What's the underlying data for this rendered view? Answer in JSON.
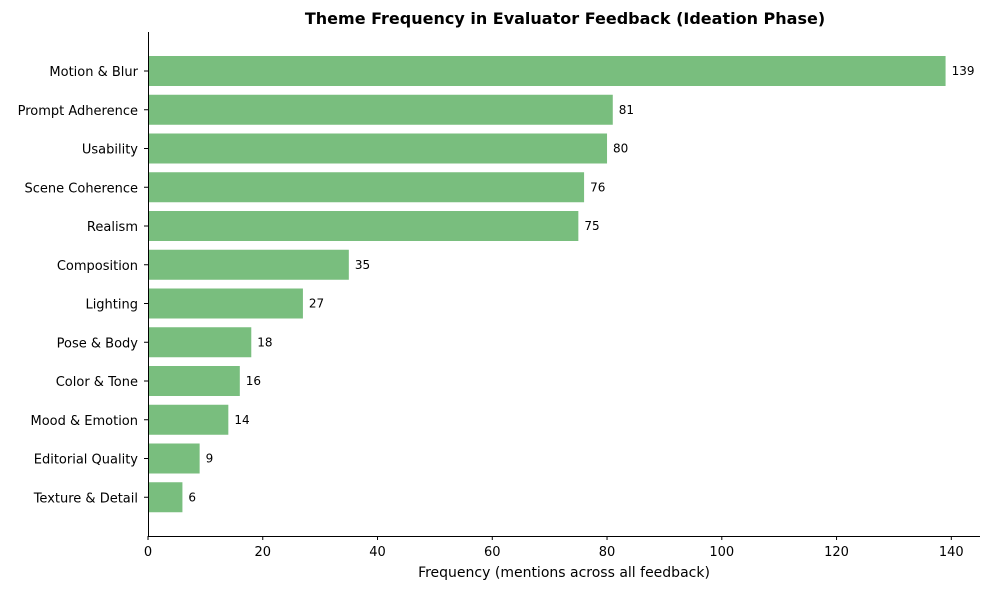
{
  "chart_data": {
    "type": "bar",
    "orientation": "horizontal",
    "title": "Theme Frequency in Evaluator Feedback (Ideation Phase)",
    "xlabel": "Frequency (mentions across all feedback)",
    "ylabel": "",
    "xlim": [
      0,
      145
    ],
    "xticks": [
      0,
      20,
      40,
      60,
      80,
      100,
      120,
      140
    ],
    "grid": false,
    "bar_color": "#79be7e",
    "categories": [
      "Motion & Blur",
      "Prompt Adherence",
      "Usability",
      "Scene Coherence",
      "Realism",
      "Composition",
      "Lighting",
      "Pose & Body",
      "Color & Tone",
      "Mood & Emotion",
      "Editorial Quality",
      "Texture & Detail"
    ],
    "values": [
      139,
      81,
      80,
      76,
      75,
      35,
      27,
      18,
      16,
      14,
      9,
      6
    ]
  }
}
